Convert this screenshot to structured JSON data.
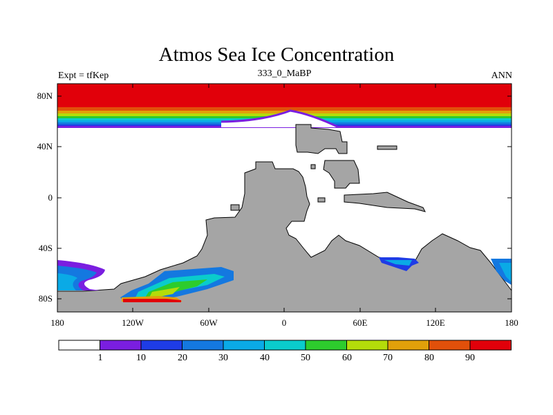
{
  "title": "Atmos Sea Ice Concentration",
  "left_string": "Expt = tfKep",
  "center_string": "333_0_MaBP",
  "right_string": "ANN",
  "axes": {
    "y_ticks": [
      "80N",
      "40N",
      "0",
      "40S",
      "80S"
    ],
    "x_ticks": [
      "180",
      "120W",
      "60W",
      "0",
      "60E",
      "120E",
      "180"
    ]
  },
  "colorbar": {
    "labels": [
      "1",
      "10",
      "20",
      "30",
      "40",
      "50",
      "60",
      "70",
      "80",
      "90"
    ],
    "colors": [
      "#ffffff",
      "#7a1ee0",
      "#1e3ce6",
      "#1478e0",
      "#0aaae6",
      "#0acccc",
      "#2dcc2d",
      "#b4dc0a",
      "#e1a00a",
      "#e1500a",
      "#e1000a"
    ]
  },
  "land_color": "#a5a5a5"
}
